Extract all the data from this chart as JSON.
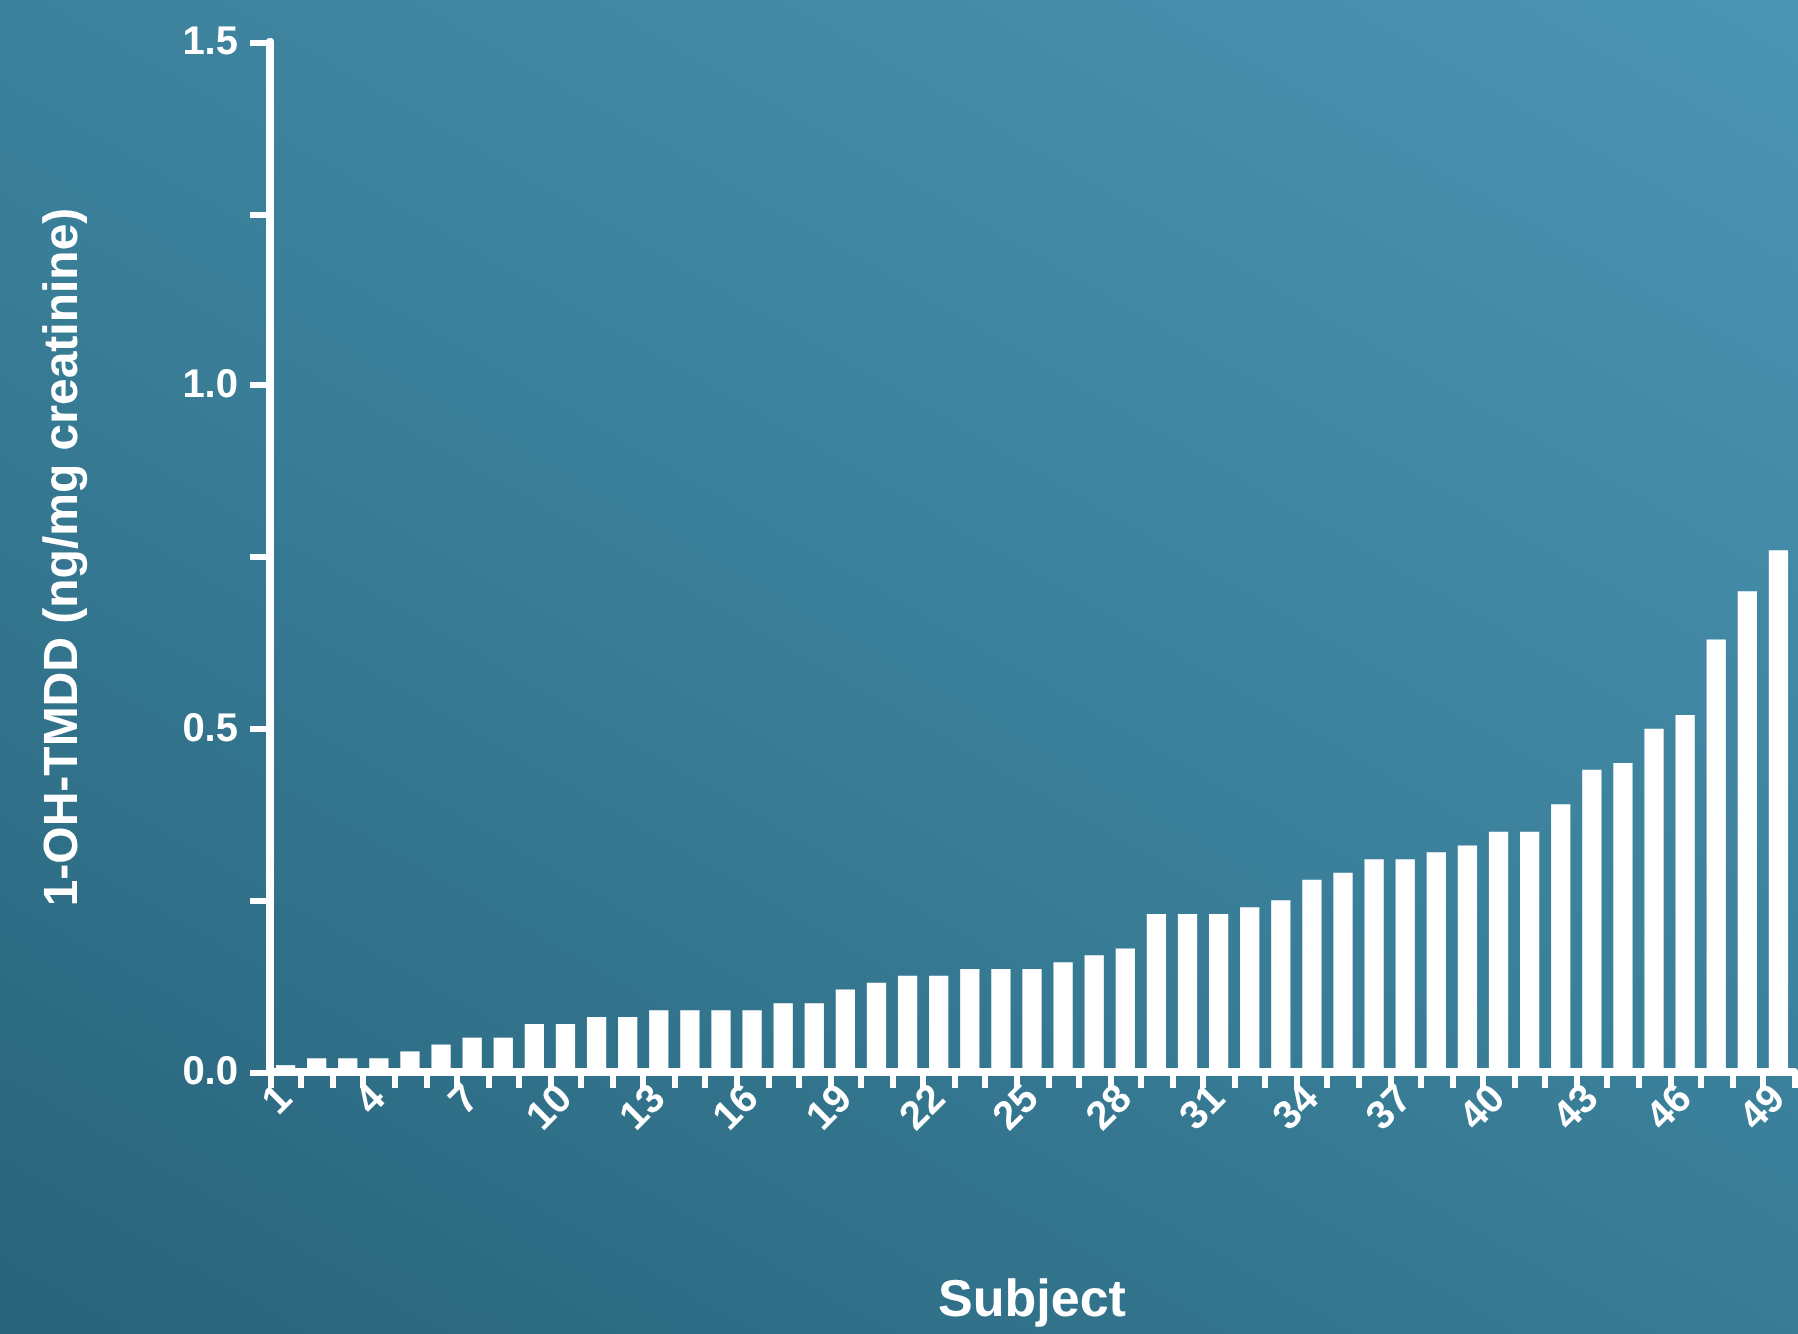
{
  "chart_data": {
    "type": "bar",
    "xlabel": "Subject",
    "ylabel": "1-OH-TMDD (ng/mg creatinine)",
    "categories": [
      "1",
      null,
      null,
      "4",
      null,
      null,
      "7",
      null,
      null,
      "10",
      null,
      null,
      "13",
      null,
      null,
      "16",
      null,
      null,
      "19",
      null,
      null,
      "22",
      null,
      null,
      "25",
      null,
      null,
      "28",
      null,
      null,
      "31",
      null,
      null,
      "34",
      null,
      null,
      "37",
      null,
      null,
      "40",
      null,
      null,
      "43",
      null,
      null,
      "46",
      null,
      null,
      "49"
    ],
    "values": [
      0.01,
      0.02,
      0.02,
      0.02,
      0.03,
      0.04,
      0.05,
      0.05,
      0.07,
      0.07,
      0.08,
      0.08,
      0.09,
      0.09,
      0.09,
      0.09,
      0.1,
      0.1,
      0.12,
      0.13,
      0.14,
      0.14,
      0.15,
      0.15,
      0.15,
      0.16,
      0.17,
      0.18,
      0.23,
      0.23,
      0.23,
      0.24,
      0.25,
      0.28,
      0.29,
      0.31,
      0.31,
      0.32,
      0.33,
      0.35,
      0.35,
      0.39,
      0.44,
      0.45,
      0.5,
      0.52,
      0.63,
      0.7,
      0.76
    ],
    "color": "#ffffff",
    "ylim": [
      0,
      1.5
    ],
    "yticks": [
      {
        "value": 0,
        "label": "0.0"
      },
      {
        "value": 0.25,
        "label": null
      },
      {
        "value": 0.5,
        "label": "0.5"
      },
      {
        "value": 0.75,
        "label": null
      },
      {
        "value": 1,
        "label": "1.0"
      },
      {
        "value": 1.25,
        "label": null
      },
      {
        "value": 1.5,
        "label": "1.5"
      }
    ],
    "grid": false
  }
}
